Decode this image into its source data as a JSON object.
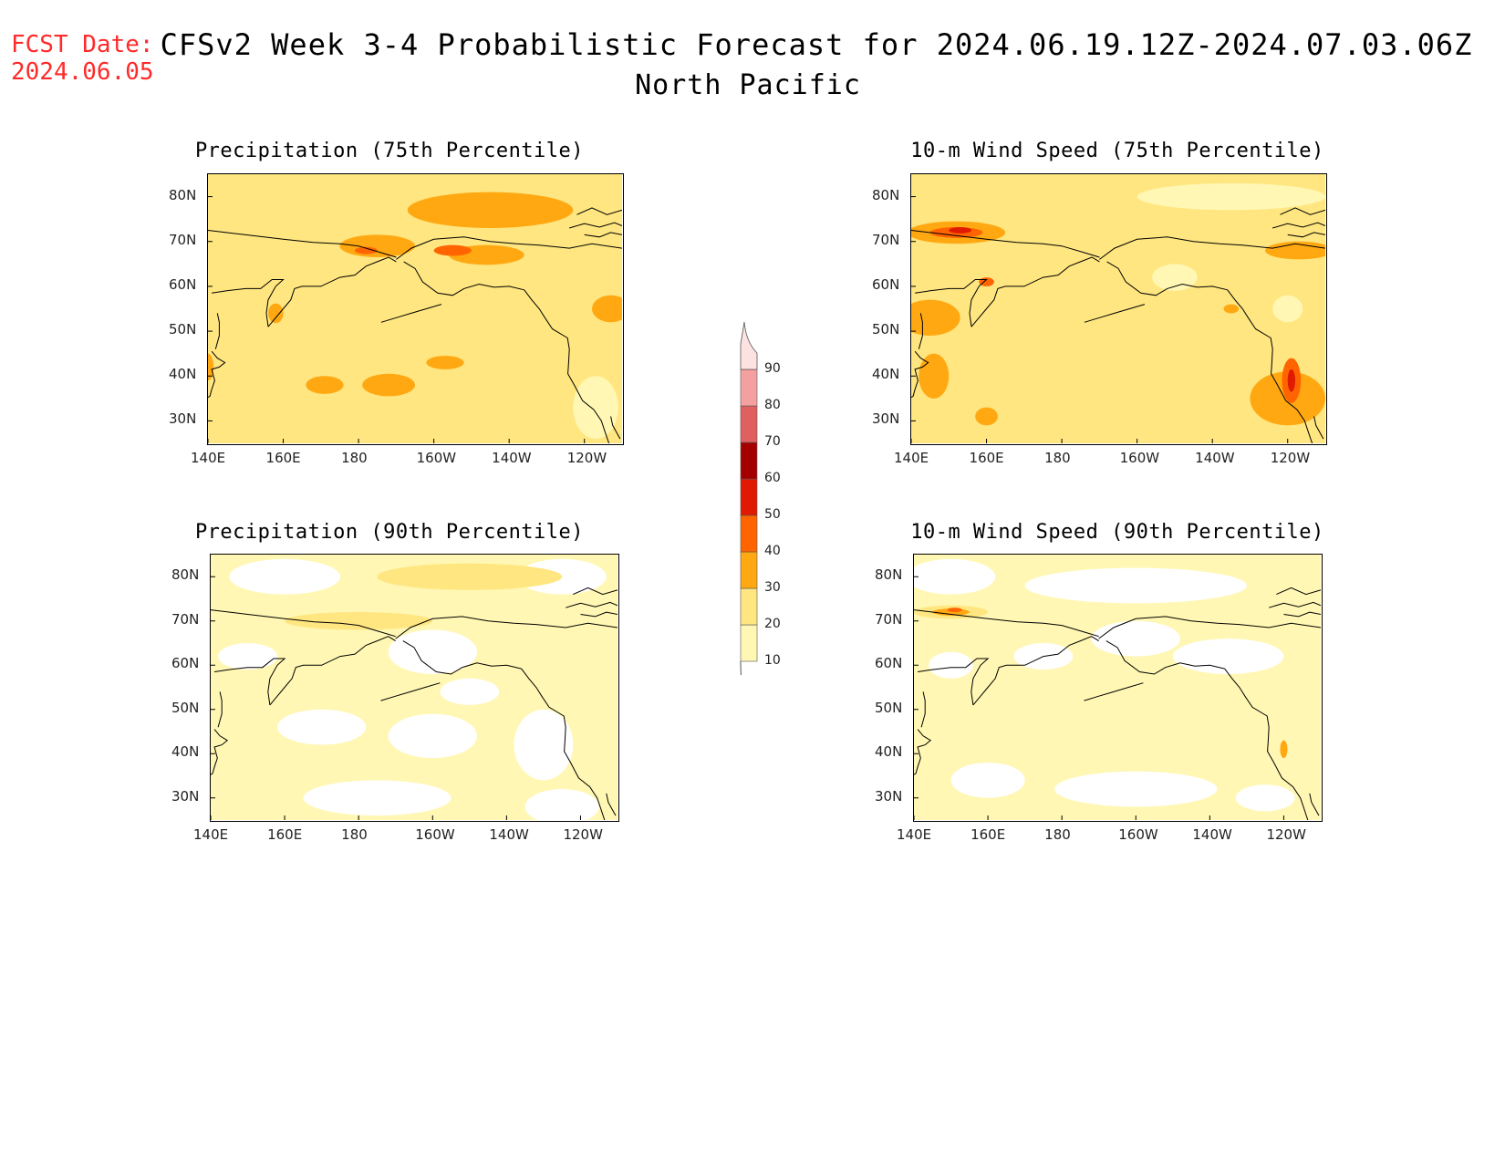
{
  "header": {
    "fcst_label": "FCST Date:",
    "fcst_date": "2024.06.05",
    "title": "CFSv2 Week 3-4 Probabilistic Forecast for 2024.06.19.12Z-2024.07.03.06Z",
    "region": "North Pacific"
  },
  "panels": [
    {
      "title": "Precipitation (75th Percentile)",
      "fill_level": 20
    },
    {
      "title": "10-m Wind Speed (75th Percentile)",
      "fill_level": 20
    },
    {
      "title": "Precipitation (90th Percentile)",
      "fill_level": 10
    },
    {
      "title": "10-m Wind Speed (90th Percentile)",
      "fill_level": 10
    }
  ],
  "axes": {
    "lat_ticks": [
      "80N",
      "70N",
      "60N",
      "50N",
      "40N",
      "30N"
    ],
    "lon_ticks": [
      "140E",
      "160E",
      "180",
      "160W",
      "140W",
      "120W"
    ],
    "lat_range": [
      25,
      85
    ],
    "lon_range": [
      140,
      250
    ]
  },
  "colorbar": {
    "levels": [
      "10",
      "20",
      "30",
      "40",
      "50",
      "60",
      "70",
      "80",
      "90"
    ],
    "colors": [
      "#fff7b3",
      "#ffe680",
      "#ffa812",
      "#ff6400",
      "#e01a00",
      "#a50000",
      "#e06060",
      "#f4a0a0",
      "#fde2e2"
    ]
  }
}
